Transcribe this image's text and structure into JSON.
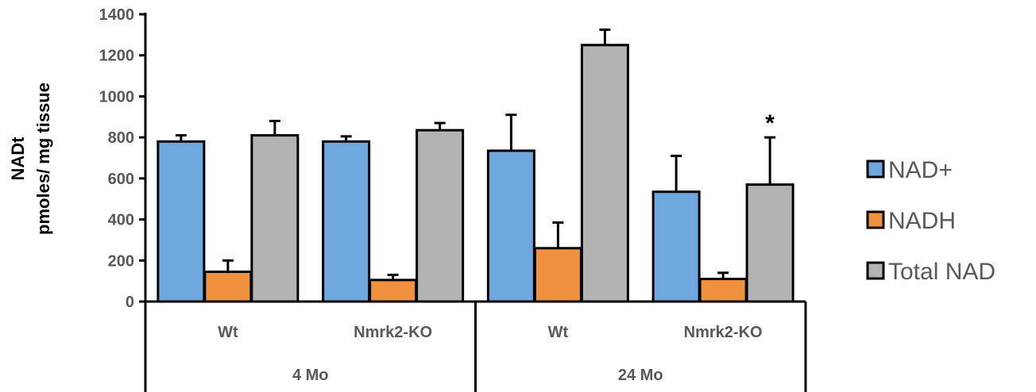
{
  "chart_data": {
    "type": "bar",
    "ylabel_line1": "NADt",
    "ylabel_line2": "pmoles/ mg tissue",
    "ylim": [
      0,
      1400
    ],
    "yticks": [
      0,
      200,
      400,
      600,
      800,
      1000,
      1200,
      1400
    ],
    "categories": [
      "Wt",
      "Nmrk2-KO",
      "Wt",
      "Nmrk2-KO"
    ],
    "groups": [
      {
        "label": "4 Mo",
        "categories": [
          0,
          1
        ]
      },
      {
        "label": "24 Mo",
        "categories": [
          2,
          3
        ]
      }
    ],
    "series": [
      {
        "name": "NAD+",
        "color": "#6fa8dc",
        "values": [
          780,
          780,
          735,
          535
        ],
        "errors": [
          30,
          25,
          175,
          175
        ]
      },
      {
        "name": "NADH",
        "color": "#f0913f",
        "values": [
          145,
          105,
          260,
          110
        ],
        "errors": [
          55,
          25,
          125,
          30
        ]
      },
      {
        "name": "Total NAD",
        "color": "#b3b3b3",
        "values": [
          810,
          835,
          1250,
          570
        ],
        "errors": [
          70,
          35,
          75,
          230
        ]
      }
    ],
    "annotations": [
      {
        "text": "*",
        "category": 3,
        "series": 2
      }
    ],
    "legend": "right",
    "grid": false
  }
}
